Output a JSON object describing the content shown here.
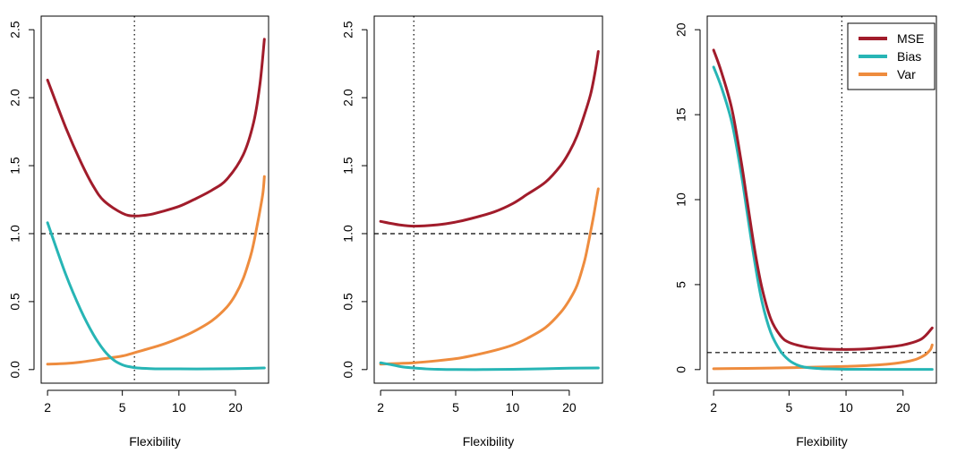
{
  "colors": {
    "MSE": "#a11c2b",
    "Bias": "#27b5b5",
    "Var": "#ee8c3e"
  },
  "legend": {
    "entries": [
      "MSE",
      "Bias",
      "Var"
    ]
  },
  "chart_data": [
    {
      "type": "line",
      "xlabel": "Flexibility",
      "ylabel": "",
      "x_scale": "log",
      "xlim": [
        1.85,
        30
      ],
      "ylim": [
        -0.1,
        2.6
      ],
      "xticks": [
        2,
        5,
        10,
        20
      ],
      "yticks": [
        0.0,
        0.5,
        1.0,
        1.5,
        2.0,
        2.5
      ],
      "ytick_labels": [
        "0.0",
        "0.5",
        "1.0",
        "1.5",
        "2.0",
        "2.5"
      ],
      "hline": 1.0,
      "vline": 5.8,
      "legend": false,
      "series": [
        {
          "name": "MSE",
          "x": [
            2,
            2.5,
            3,
            3.5,
            4,
            5,
            5.8,
            7,
            8,
            10,
            12,
            15,
            18,
            22,
            25,
            27,
            28.5
          ],
          "y": [
            2.13,
            1.78,
            1.53,
            1.35,
            1.24,
            1.15,
            1.13,
            1.14,
            1.16,
            1.2,
            1.25,
            1.32,
            1.4,
            1.58,
            1.82,
            2.1,
            2.43
          ]
        },
        {
          "name": "Bias",
          "x": [
            2,
            2.5,
            3,
            3.5,
            4,
            4.5,
            5,
            5.5,
            6,
            7,
            8,
            10,
            15,
            20,
            28.5
          ],
          "y": [
            1.08,
            0.7,
            0.44,
            0.26,
            0.14,
            0.07,
            0.035,
            0.02,
            0.012,
            0.007,
            0.005,
            0.005,
            0.005,
            0.007,
            0.012
          ]
        },
        {
          "name": "Var",
          "x": [
            2,
            2.5,
            3,
            4,
            5,
            6,
            8,
            10,
            12,
            15,
            18,
            20,
            22,
            24,
            25,
            26,
            27,
            28,
            28.5
          ],
          "y": [
            0.04,
            0.045,
            0.055,
            0.08,
            0.1,
            0.13,
            0.18,
            0.23,
            0.28,
            0.36,
            0.46,
            0.55,
            0.67,
            0.83,
            0.93,
            1.05,
            1.17,
            1.3,
            1.42
          ]
        }
      ]
    },
    {
      "type": "line",
      "xlabel": "Flexibility",
      "ylabel": "",
      "x_scale": "log",
      "xlim": [
        1.85,
        30
      ],
      "ylim": [
        -0.1,
        2.6
      ],
      "xticks": [
        2,
        5,
        10,
        20
      ],
      "yticks": [
        0.0,
        0.5,
        1.0,
        1.5,
        2.0,
        2.5
      ],
      "ytick_labels": [
        "0.0",
        "0.5",
        "1.0",
        "1.5",
        "2.0",
        "2.5"
      ],
      "hline": 1.0,
      "vline": 3.0,
      "legend": false,
      "series": [
        {
          "name": "MSE",
          "x": [
            2,
            2.5,
            3,
            4,
            5,
            6,
            8,
            10,
            12,
            15,
            18,
            20,
            22,
            24,
            26,
            27.5,
            28.5
          ],
          "y": [
            1.09,
            1.065,
            1.055,
            1.065,
            1.085,
            1.11,
            1.16,
            1.22,
            1.29,
            1.38,
            1.5,
            1.6,
            1.72,
            1.87,
            2.03,
            2.2,
            2.34
          ]
        },
        {
          "name": "Bias",
          "x": [
            2,
            2.3,
            2.6,
            3,
            3.5,
            4,
            5,
            7,
            10,
            15,
            20,
            28.5
          ],
          "y": [
            0.05,
            0.035,
            0.02,
            0.012,
            0.005,
            0.002,
            0.0,
            0.0,
            0.002,
            0.006,
            0.01,
            0.012
          ]
        },
        {
          "name": "Var",
          "x": [
            2,
            2.5,
            3,
            4,
            5,
            6,
            8,
            10,
            12,
            15,
            18,
            20,
            22,
            24,
            25,
            26,
            27,
            28,
            28.5
          ],
          "y": [
            0.04,
            0.045,
            0.05,
            0.065,
            0.08,
            0.1,
            0.14,
            0.18,
            0.23,
            0.31,
            0.42,
            0.51,
            0.62,
            0.79,
            0.9,
            1.02,
            1.14,
            1.27,
            1.33
          ]
        }
      ]
    },
    {
      "type": "line",
      "xlabel": "Flexibility",
      "ylabel": "",
      "x_scale": "log",
      "xlim": [
        1.85,
        30
      ],
      "ylim": [
        -0.8,
        20.8
      ],
      "xticks": [
        2,
        5,
        10,
        20
      ],
      "yticks": [
        0,
        5,
        10,
        15,
        20
      ],
      "ytick_labels": [
        "0",
        "5",
        "10",
        "15",
        "20"
      ],
      "hline": 1.0,
      "vline": 9.5,
      "legend": true,
      "legend_position": "top-right",
      "series": [
        {
          "name": "MSE",
          "x": [
            2,
            2.2,
            2.5,
            2.8,
            3,
            3.3,
            3.6,
            4,
            4.5,
            5,
            6,
            7,
            8,
            10,
            12,
            15,
            20,
            25,
            28.5
          ],
          "y": [
            18.8,
            17.5,
            15.3,
            12.2,
            10.0,
            7.0,
            4.8,
            3.0,
            2.0,
            1.6,
            1.35,
            1.25,
            1.2,
            1.18,
            1.2,
            1.28,
            1.45,
            1.8,
            2.45
          ]
        },
        {
          "name": "Bias",
          "x": [
            2,
            2.2,
            2.5,
            2.8,
            3,
            3.3,
            3.6,
            4,
            4.5,
            5,
            5.5,
            6,
            7,
            8,
            10,
            15,
            20,
            28.5
          ],
          "y": [
            17.8,
            16.6,
            14.5,
            11.5,
            9.3,
            6.3,
            4.0,
            2.2,
            1.1,
            0.55,
            0.28,
            0.15,
            0.07,
            0.04,
            0.02,
            0.01,
            0.01,
            0.01
          ]
        },
        {
          "name": "Var",
          "x": [
            2,
            3,
            4,
            5,
            6,
            8,
            10,
            12,
            15,
            18,
            20,
            22,
            24,
            26,
            27,
            28,
            28.5
          ],
          "y": [
            0.05,
            0.07,
            0.09,
            0.11,
            0.13,
            0.16,
            0.19,
            0.22,
            0.28,
            0.36,
            0.43,
            0.52,
            0.65,
            0.85,
            1.0,
            1.2,
            1.45
          ]
        }
      ]
    }
  ]
}
